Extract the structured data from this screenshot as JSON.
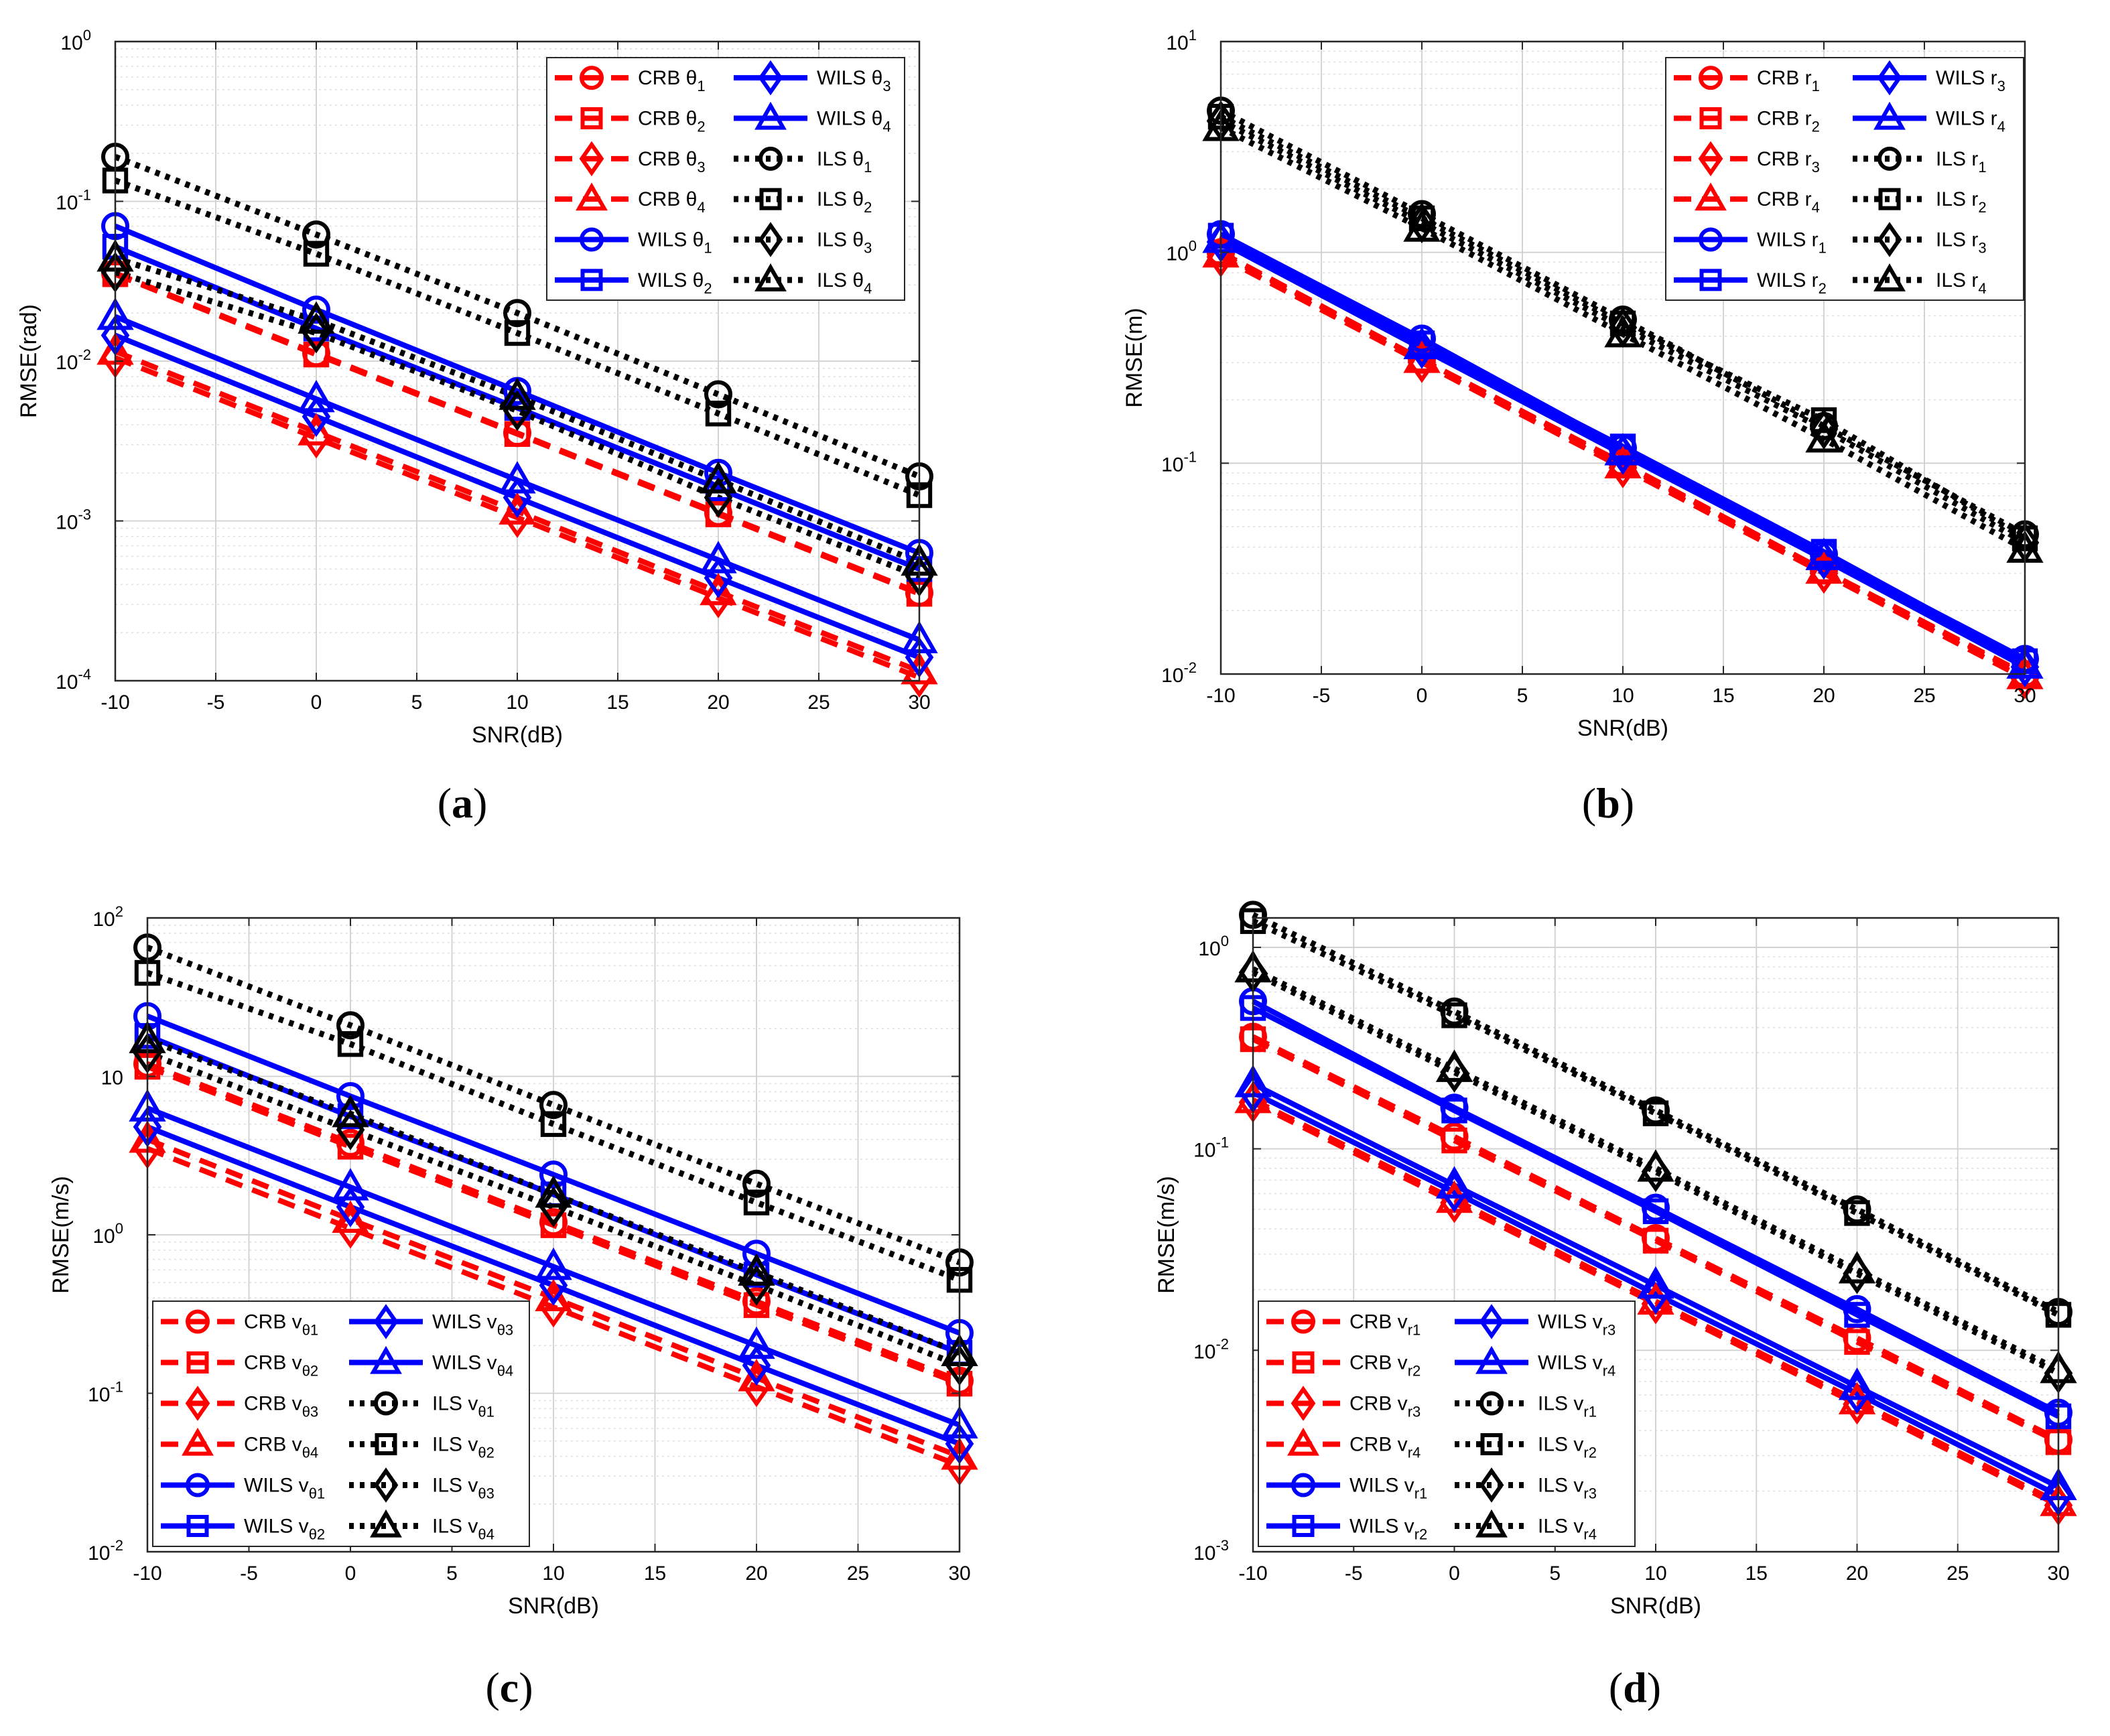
{
  "colors": {
    "crb": "#ff0000",
    "wils": "#0000ff",
    "ils": "#000000"
  },
  "chart_data": [
    {
      "type": "line",
      "panel": "a",
      "caption": "(a)",
      "xlabel": "SNR(dB)",
      "ylabel": "RMSE(rad)",
      "xscale": "linear",
      "yscale": "log",
      "xlim": [
        -10,
        30
      ],
      "ylim": [
        0.0001,
        1
      ],
      "xticks": [
        -10,
        -5,
        0,
        5,
        10,
        15,
        20,
        25,
        30
      ],
      "xticklabels": [
        "-10",
        "-5",
        "0",
        "5",
        "10",
        "15",
        "20",
        "25",
        "30"
      ],
      "yticks": [
        0.0001,
        0.001,
        0.01,
        0.1,
        1
      ],
      "yticklabels": [
        [
          "10",
          "-4"
        ],
        [
          "10",
          "-3"
        ],
        [
          "10",
          "-2"
        ],
        [
          "10",
          "-1"
        ],
        [
          "10",
          "0"
        ]
      ],
      "legend_position": "top-right",
      "x": [
        -10,
        0,
        10,
        20,
        30
      ],
      "series": [
        {
          "name": "CRB θ1",
          "method": "crb",
          "marker": "circle",
          "values": [
            0.0355,
            0.0112,
            0.00355,
            0.00112,
            0.000355
          ]
        },
        {
          "name": "CRB θ2",
          "method": "crb",
          "marker": "square",
          "values": [
            0.035,
            0.011,
            0.0035,
            0.0011,
            0.00035
          ]
        },
        {
          "name": "CRB θ3",
          "method": "crb",
          "marker": "diamond",
          "values": [
            0.0105,
            0.0033,
            0.00105,
            0.00033,
            0.000105
          ]
        },
        {
          "name": "CRB θ4",
          "method": "crb",
          "marker": "triangle",
          "values": [
            0.0115,
            0.0036,
            0.00115,
            0.00036,
            0.000115
          ]
        },
        {
          "name": "WILS θ1",
          "method": "wils",
          "marker": "circle",
          "values": [
            0.07,
            0.021,
            0.0065,
            0.002,
            0.00063
          ]
        },
        {
          "name": "WILS θ2",
          "method": "wils",
          "marker": "square",
          "values": [
            0.052,
            0.016,
            0.0051,
            0.0016,
            0.0005
          ]
        },
        {
          "name": "WILS θ3",
          "method": "wils",
          "marker": "diamond",
          "values": [
            0.0145,
            0.0045,
            0.0014,
            0.00044,
            0.00014
          ]
        },
        {
          "name": "WILS θ4",
          "method": "wils",
          "marker": "triangle",
          "values": [
            0.019,
            0.0058,
            0.0018,
            0.00057,
            0.00018
          ]
        },
        {
          "name": "ILS θ1",
          "method": "ils",
          "marker": "circle",
          "values": [
            0.19,
            0.062,
            0.02,
            0.0062,
            0.0019
          ]
        },
        {
          "name": "ILS θ2",
          "method": "ils",
          "marker": "square",
          "values": [
            0.135,
            0.047,
            0.015,
            0.0047,
            0.00145
          ]
        },
        {
          "name": "ILS θ3",
          "method": "ils",
          "marker": "diamond",
          "values": [
            0.036,
            0.015,
            0.0049,
            0.0014,
            0.00045
          ]
        },
        {
          "name": "ILS θ4",
          "method": "ils",
          "marker": "triangle",
          "values": [
            0.044,
            0.018,
            0.006,
            0.0018,
            0.00055
          ]
        }
      ]
    },
    {
      "type": "line",
      "panel": "b",
      "caption": "(b)",
      "xlabel": "SNR(dB)",
      "ylabel": "RMSE(m)",
      "xscale": "linear",
      "yscale": "log",
      "xlim": [
        -10,
        30
      ],
      "ylim": [
        0.01,
        10
      ],
      "xticks": [
        -10,
        -5,
        0,
        5,
        10,
        15,
        20,
        25,
        30
      ],
      "xticklabels": [
        "-10",
        "-5",
        "0",
        "5",
        "10",
        "15",
        "20",
        "25",
        "30"
      ],
      "yticks": [
        0.01,
        0.1,
        1,
        10
      ],
      "yticklabels": [
        [
          "10",
          "-2"
        ],
        [
          "10",
          "-1"
        ],
        [
          "10",
          "0"
        ],
        [
          "10",
          "1"
        ]
      ],
      "legend_position": "top-right",
      "x": [
        -10,
        0,
        10,
        20,
        30
      ],
      "series": [
        {
          "name": "CRB r1",
          "method": "crb",
          "marker": "circle",
          "values": [
            1.0,
            0.31,
            0.1,
            0.031,
            0.01
          ]
        },
        {
          "name": "CRB r2",
          "method": "crb",
          "marker": "square",
          "values": [
            1.0,
            0.31,
            0.1,
            0.031,
            0.01
          ]
        },
        {
          "name": "CRB r3",
          "method": "crb",
          "marker": "diamond",
          "values": [
            0.95,
            0.3,
            0.095,
            0.03,
            0.0095
          ]
        },
        {
          "name": "CRB r4",
          "method": "crb",
          "marker": "triangle",
          "values": [
            0.98,
            0.31,
            0.098,
            0.031,
            0.0098
          ]
        },
        {
          "name": "WILS r1",
          "method": "wils",
          "marker": "circle",
          "values": [
            1.22,
            0.39,
            0.118,
            0.037,
            0.0118
          ]
        },
        {
          "name": "WILS r2",
          "method": "wils",
          "marker": "square",
          "values": [
            1.2,
            0.37,
            0.12,
            0.038,
            0.0115
          ]
        },
        {
          "name": "WILS r3",
          "method": "wils",
          "marker": "diamond",
          "values": [
            1.12,
            0.35,
            0.11,
            0.035,
            0.0108
          ]
        },
        {
          "name": "WILS r4",
          "method": "wils",
          "marker": "triangle",
          "values": [
            1.15,
            0.36,
            0.113,
            0.036,
            0.011
          ]
        },
        {
          "name": "ILS r1",
          "method": "ils",
          "marker": "circle",
          "values": [
            4.7,
            1.52,
            0.48,
            0.15,
            0.046
          ]
        },
        {
          "name": "ILS r2",
          "method": "ils",
          "marker": "square",
          "values": [
            4.4,
            1.45,
            0.46,
            0.16,
            0.044
          ]
        },
        {
          "name": "ILS r3",
          "method": "ils",
          "marker": "diamond",
          "values": [
            4.2,
            1.38,
            0.44,
            0.145,
            0.042
          ]
        },
        {
          "name": "ILS r4",
          "method": "ils",
          "marker": "triangle",
          "values": [
            3.9,
            1.3,
            0.41,
            0.13,
            0.039
          ]
        }
      ]
    },
    {
      "type": "line",
      "panel": "c",
      "caption": "(c)",
      "xlabel": "SNR(dB)",
      "ylabel": "RMSE(m/s)",
      "xscale": "linear",
      "yscale": "log",
      "xlim": [
        -10,
        30
      ],
      "ylim": [
        0.01,
        100
      ],
      "xticks": [
        -10,
        -5,
        0,
        5,
        10,
        15,
        20,
        25,
        30
      ],
      "xticklabels": [
        "-10",
        "-5",
        "0",
        "5",
        "10",
        "15",
        "20",
        "25",
        "30"
      ],
      "yticks": [
        0.01,
        0.1,
        1,
        10,
        100
      ],
      "yticklabels": [
        [
          "10",
          "-2"
        ],
        [
          "10",
          "-1"
        ],
        [
          "10",
          "0"
        ],
        [
          "10",
          ""
        ],
        [
          "10",
          "2"
        ]
      ],
      "legend_position": "bottom-left",
      "x": [
        -10,
        0,
        10,
        20,
        30
      ],
      "series": [
        {
          "name": "CRB vθ1",
          "method": "crb",
          "marker": "circle",
          "values": [
            12,
            3.8,
            1.2,
            0.38,
            0.12
          ]
        },
        {
          "name": "CRB vθ2",
          "method": "crb",
          "marker": "square",
          "values": [
            11.5,
            3.6,
            1.15,
            0.36,
            0.115
          ]
        },
        {
          "name": "CRB vθ3",
          "method": "crb",
          "marker": "diamond",
          "values": [
            3.5,
            1.1,
            0.35,
            0.11,
            0.035
          ]
        },
        {
          "name": "CRB vθ4",
          "method": "crb",
          "marker": "triangle",
          "values": [
            4.0,
            1.25,
            0.4,
            0.125,
            0.04
          ]
        },
        {
          "name": "WILS vθ1",
          "method": "wils",
          "marker": "circle",
          "values": [
            24,
            7.5,
            2.4,
            0.76,
            0.24
          ]
        },
        {
          "name": "WILS vθ2",
          "method": "wils",
          "marker": "square",
          "values": [
            18,
            5.6,
            1.8,
            0.56,
            0.18
          ]
        },
        {
          "name": "WILS vθ3",
          "method": "wils",
          "marker": "diamond",
          "values": [
            4.8,
            1.5,
            0.48,
            0.15,
            0.048
          ]
        },
        {
          "name": "WILS vθ4",
          "method": "wils",
          "marker": "triangle",
          "values": [
            6.3,
            2.0,
            0.63,
            0.2,
            0.063
          ]
        },
        {
          "name": "ILS vθ1",
          "method": "ils",
          "marker": "circle",
          "values": [
            65,
            21,
            6.6,
            2.1,
            0.67
          ]
        },
        {
          "name": "ILS vθ2",
          "method": "ils",
          "marker": "square",
          "values": [
            45,
            16,
            5.0,
            1.6,
            0.52
          ]
        },
        {
          "name": "ILS vθ3",
          "method": "ils",
          "marker": "diamond",
          "values": [
            14,
            4.6,
            1.5,
            0.48,
            0.15
          ]
        },
        {
          "name": "ILS vθ4",
          "method": "ils",
          "marker": "triangle",
          "values": [
            17,
            5.8,
            1.8,
            0.58,
            0.18
          ]
        }
      ]
    },
    {
      "type": "line",
      "panel": "d",
      "caption": "(d)",
      "xlabel": "SNR(dB)",
      "ylabel": "RMSE(m/s)",
      "xscale": "linear",
      "yscale": "log",
      "xlim": [
        -10,
        30
      ],
      "ylim": [
        0.001,
        1.4
      ],
      "xticks": [
        -10,
        -5,
        0,
        5,
        10,
        15,
        20,
        25,
        30
      ],
      "xticklabels": [
        "-10",
        "-5",
        "0",
        "5",
        "10",
        "15",
        "20",
        "25",
        "30"
      ],
      "yticks": [
        0.001,
        0.01,
        0.1,
        1
      ],
      "yticklabels": [
        [
          "10",
          "-3"
        ],
        [
          "10",
          "-2"
        ],
        [
          "10",
          "-1"
        ],
        [
          "10",
          "0"
        ]
      ],
      "legend_position": "bottom-left",
      "x": [
        -10,
        0,
        10,
        20,
        30
      ],
      "series": [
        {
          "name": "CRB vr1",
          "method": "crb",
          "marker": "circle",
          "values": [
            0.36,
            0.115,
            0.036,
            0.0115,
            0.0036
          ]
        },
        {
          "name": "CRB vr2",
          "method": "crb",
          "marker": "square",
          "values": [
            0.35,
            0.11,
            0.035,
            0.011,
            0.0035
          ]
        },
        {
          "name": "CRB vr3",
          "method": "crb",
          "marker": "diamond",
          "values": [
            0.17,
            0.054,
            0.017,
            0.0054,
            0.0017
          ]
        },
        {
          "name": "CRB vr4",
          "method": "crb",
          "marker": "triangle",
          "values": [
            0.175,
            0.056,
            0.0175,
            0.0056,
            0.00175
          ]
        },
        {
          "name": "WILS vr1",
          "method": "wils",
          "marker": "circle",
          "values": [
            0.54,
            0.16,
            0.051,
            0.016,
            0.0049
          ]
        },
        {
          "name": "WILS vr2",
          "method": "wils",
          "marker": "square",
          "values": [
            0.5,
            0.155,
            0.049,
            0.015,
            0.0047
          ]
        },
        {
          "name": "WILS vr3",
          "method": "wils",
          "marker": "diamond",
          "values": [
            0.19,
            0.061,
            0.019,
            0.0061,
            0.0019
          ]
        },
        {
          "name": "WILS vr4",
          "method": "wils",
          "marker": "triangle",
          "values": [
            0.21,
            0.066,
            0.021,
            0.0066,
            0.0021
          ]
        },
        {
          "name": "ILS vr1",
          "method": "ils",
          "marker": "circle",
          "values": [
            1.45,
            0.48,
            0.155,
            0.05,
            0.0155
          ]
        },
        {
          "name": "ILS vr2",
          "method": "ils",
          "marker": "square",
          "values": [
            1.35,
            0.46,
            0.15,
            0.048,
            0.015
          ]
        },
        {
          "name": "ILS vr3",
          "method": "ils",
          "marker": "diamond",
          "values": [
            0.75,
            0.24,
            0.077,
            0.024,
            0.0077
          ]
        },
        {
          "name": "ILS vr4",
          "method": "ils",
          "marker": "triangle",
          "values": [
            0.78,
            0.25,
            0.08,
            0.025,
            0.008
          ]
        }
      ]
    }
  ]
}
